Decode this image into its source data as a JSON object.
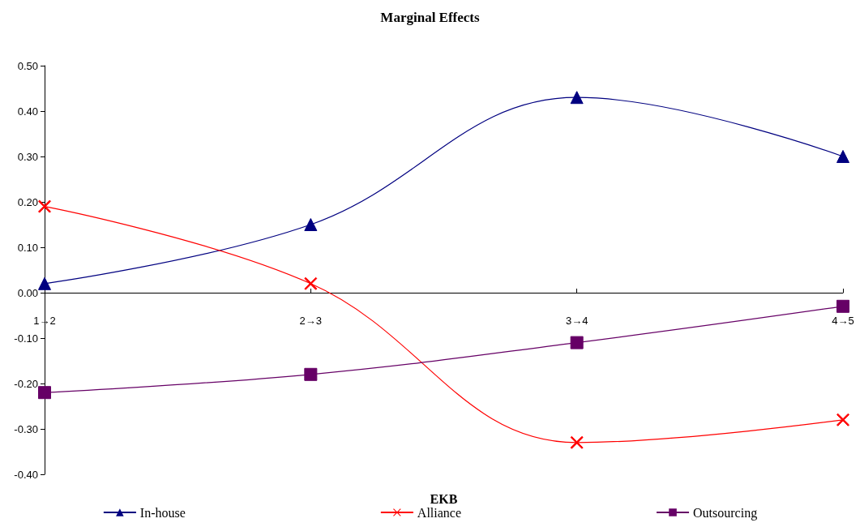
{
  "chart_data": {
    "type": "line",
    "title": "Marginal Effects",
    "xlabel": "EKB",
    "categories": [
      "1→2",
      "2→3",
      "3→4",
      "4→5"
    ],
    "series": [
      {
        "name": "In-house",
        "color": "#000080",
        "marker": "triangle",
        "values": [
          0.02,
          0.15,
          0.43,
          0.3
        ]
      },
      {
        "name": "Alliance",
        "color": "#ff0000",
        "marker": "cross",
        "values": [
          0.19,
          0.02,
          -0.33,
          -0.28
        ]
      },
      {
        "name": "Outsourcing",
        "color": "#660066",
        "marker": "square",
        "values": [
          -0.22,
          -0.18,
          -0.11,
          -0.03
        ]
      }
    ],
    "ylim": [
      -0.4,
      0.5
    ],
    "yticks": [
      {
        "value": -0.4,
        "label": "-0.40"
      },
      {
        "value": -0.3,
        "label": "-0.30"
      },
      {
        "value": -0.2,
        "label": "-0.20"
      },
      {
        "value": -0.1,
        "label": "-0.10"
      },
      {
        "value": 0,
        "label": "0.00"
      },
      {
        "value": 0.1,
        "label": "0.10"
      },
      {
        "value": 0.2,
        "label": "0.20"
      },
      {
        "value": 0.3,
        "label": "0.30"
      },
      {
        "value": 0.4,
        "label": "0.40"
      },
      {
        "value": 0.5,
        "label": "0.50"
      }
    ],
    "grid": false,
    "legend": "bottom",
    "line_style": "solid"
  }
}
